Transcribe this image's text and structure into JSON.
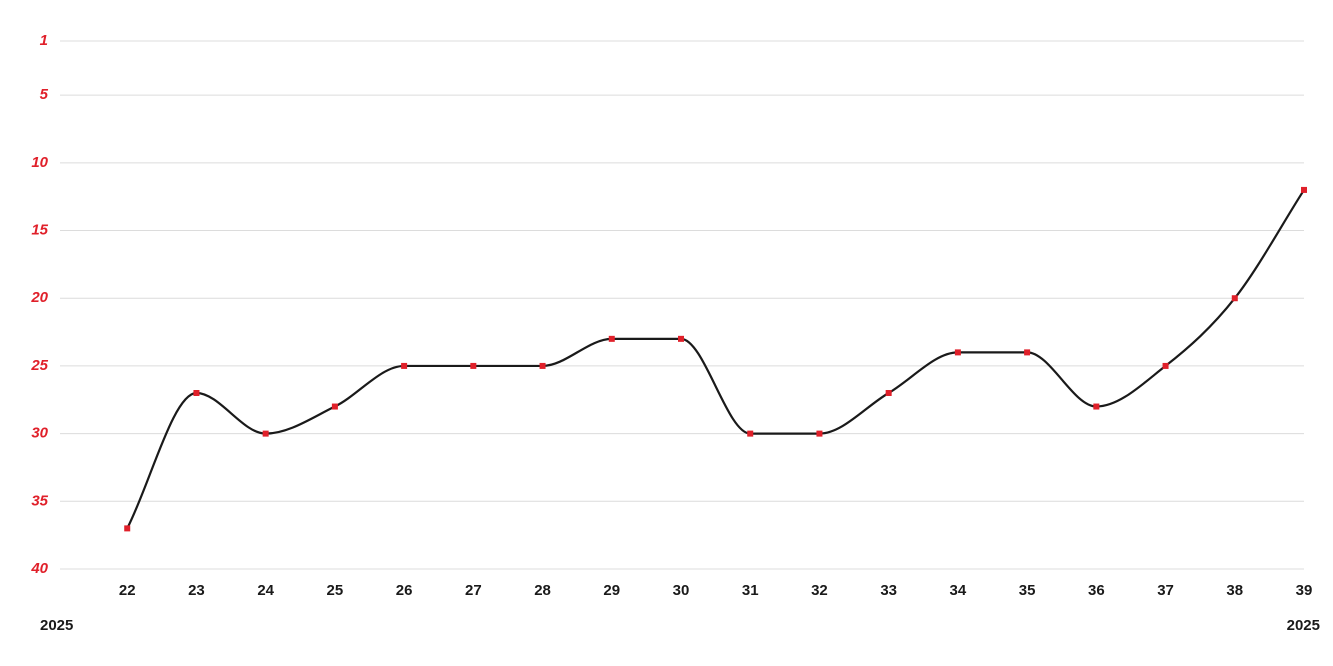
{
  "chart_data": {
    "type": "line",
    "x": [
      22,
      23,
      24,
      25,
      26,
      27,
      28,
      29,
      30,
      31,
      32,
      33,
      34,
      35,
      36,
      37,
      38,
      39
    ],
    "series": [
      {
        "color": "#1a1a1a",
        "marker_color": "#e0202a",
        "values": [
          37,
          27,
          30,
          28,
          25,
          25,
          25,
          23,
          23,
          30,
          30,
          27,
          24,
          24,
          28,
          25,
          20,
          12
        ]
      }
    ],
    "xlim": [
      21,
      39
    ],
    "xticks": [
      22,
      23,
      24,
      25,
      26,
      27,
      28,
      29,
      30,
      31,
      32,
      33,
      34,
      35,
      36,
      37,
      38,
      39
    ],
    "ylim": [
      40,
      1
    ],
    "yticks": [
      1,
      5,
      10,
      15,
      20,
      25,
      30,
      35,
      40
    ],
    "x_range_labels": [
      "2025",
      "2025"
    ],
    "grid": true
  }
}
